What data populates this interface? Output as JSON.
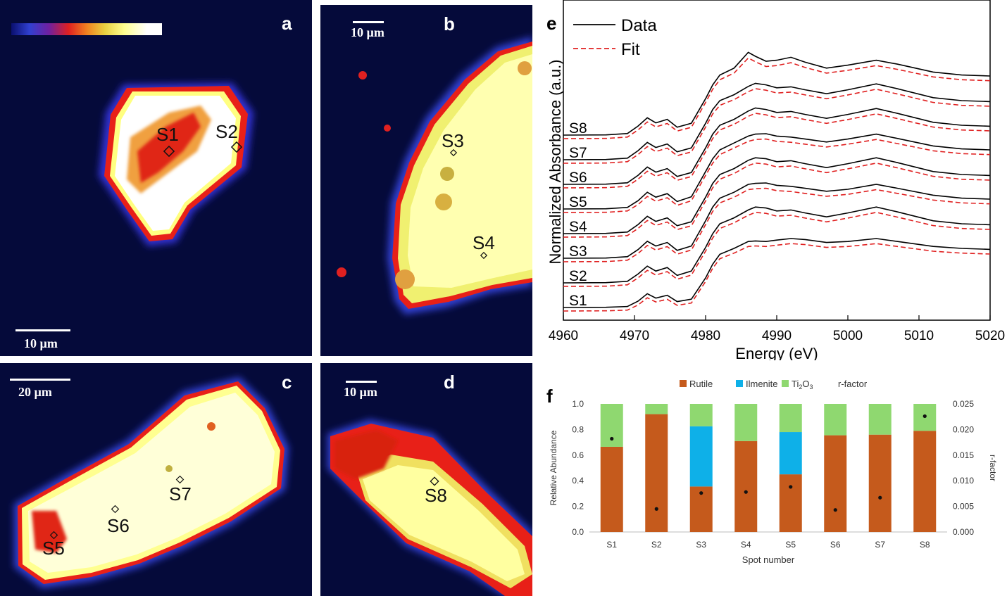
{
  "panels": {
    "a": {
      "label": "a",
      "scale": "10 µm",
      "spots": [
        "S1",
        "S2"
      ]
    },
    "b": {
      "label": "b",
      "scale": "10 µm",
      "spots": [
        "S3",
        "S4"
      ]
    },
    "c": {
      "label": "c",
      "scale": "20 µm",
      "spots": [
        "S5",
        "S6",
        "S7"
      ]
    },
    "d": {
      "label": "d",
      "scale": "10 µm",
      "spots": [
        "S8"
      ]
    }
  },
  "colormap": [
    "#0a0f6e",
    "#3040d0",
    "#7020a0",
    "#e02020",
    "#f08020",
    "#e8d040",
    "#ffff90",
    "#ffffff"
  ],
  "chart_data": [
    {
      "panel": "e",
      "type": "line",
      "xlabel": "Energy (eV)",
      "ylabel": "Normalized Absorbance (a.u.)",
      "xlim": [
        4960,
        5020
      ],
      "xticks": [
        4960,
        4970,
        4980,
        4990,
        5000,
        5010,
        5020
      ],
      "legend": {
        "placement": "top-left",
        "entries": [
          "Data",
          "Fit"
        ]
      },
      "colors": {
        "data": "#000000",
        "fit": "#e02020"
      },
      "series_labels": [
        "S1",
        "S2",
        "S3",
        "S4",
        "S5",
        "S6",
        "S7",
        "S8"
      ],
      "offsets": [
        0,
        1,
        2,
        3,
        4,
        5,
        6,
        7
      ],
      "energy": [
        4960,
        4966,
        4969,
        4970.5,
        4971.8,
        4973,
        4974.6,
        4976,
        4978,
        4980,
        4981,
        4982,
        4984,
        4986,
        4987,
        4988.5,
        4990,
        4992,
        4994,
        4997,
        5000,
        5004,
        5007,
        5012,
        5016,
        5020
      ],
      "data": [
        [
          0.0,
          0.01,
          0.05,
          0.32,
          0.7,
          0.48,
          0.62,
          0.3,
          0.42,
          1.5,
          2.2,
          2.7,
          3.0,
          3.35,
          3.38,
          3.35,
          3.42,
          3.5,
          3.45,
          3.3,
          3.35,
          3.5,
          3.35,
          3.1,
          3.0,
          2.95
        ],
        [
          0.0,
          0.01,
          0.08,
          0.45,
          0.85,
          0.6,
          0.78,
          0.38,
          0.6,
          1.8,
          2.5,
          3.0,
          3.3,
          3.7,
          3.85,
          3.8,
          3.65,
          3.7,
          3.55,
          3.35,
          3.55,
          3.85,
          3.6,
          3.15,
          3.0,
          2.95
        ],
        [
          0.0,
          0.01,
          0.08,
          0.44,
          0.86,
          0.62,
          0.8,
          0.4,
          0.62,
          1.9,
          2.6,
          3.05,
          3.35,
          3.75,
          3.8,
          3.82,
          3.7,
          3.65,
          3.55,
          3.4,
          3.5,
          3.75,
          3.55,
          3.2,
          3.05,
          3.0
        ],
        [
          0.0,
          0.01,
          0.08,
          0.46,
          0.88,
          0.62,
          0.8,
          0.4,
          0.6,
          1.85,
          2.55,
          3.0,
          3.3,
          3.72,
          3.85,
          3.8,
          3.65,
          3.7,
          3.55,
          3.35,
          3.55,
          3.85,
          3.6,
          3.15,
          3.0,
          2.95
        ],
        [
          0.0,
          0.01,
          0.08,
          0.42,
          0.85,
          0.6,
          0.78,
          0.38,
          0.62,
          1.9,
          2.55,
          3.0,
          3.35,
          3.7,
          3.8,
          3.82,
          3.7,
          3.65,
          3.55,
          3.4,
          3.55,
          3.8,
          3.58,
          3.2,
          3.05,
          3.0
        ],
        [
          0.0,
          0.01,
          0.08,
          0.46,
          0.88,
          0.62,
          0.8,
          0.4,
          0.6,
          1.85,
          2.55,
          3.0,
          3.3,
          3.72,
          3.88,
          3.8,
          3.65,
          3.7,
          3.55,
          3.35,
          3.55,
          3.85,
          3.6,
          3.15,
          3.0,
          2.95
        ],
        [
          0.0,
          0.01,
          0.08,
          0.46,
          0.88,
          0.62,
          0.8,
          0.4,
          0.6,
          1.85,
          2.55,
          3.0,
          3.3,
          3.72,
          3.88,
          3.8,
          3.65,
          3.7,
          3.55,
          3.35,
          3.55,
          3.85,
          3.6,
          3.15,
          3.0,
          2.95
        ],
        [
          0.0,
          0.01,
          0.08,
          0.46,
          0.88,
          0.62,
          0.8,
          0.4,
          0.6,
          1.85,
          2.55,
          3.05,
          3.4,
          4.2,
          4.0,
          3.75,
          3.8,
          3.95,
          3.7,
          3.4,
          3.55,
          3.8,
          3.6,
          3.2,
          3.05,
          3.0
        ]
      ]
    },
    {
      "panel": "f",
      "type": "bar",
      "xlabel": "Spot number",
      "ylabel": "Relative Abundance",
      "y2label": "r-factor",
      "ylim": [
        0,
        1.0
      ],
      "yticks": [
        "0.0",
        "0.2",
        "0.4",
        "0.6",
        "0.8",
        "1.0"
      ],
      "y2lim": [
        0,
        0.025
      ],
      "y2ticks": [
        "0.000",
        "0.005",
        "0.010",
        "0.015",
        "0.020",
        "0.025"
      ],
      "legend": {
        "placement": "top",
        "entries": [
          "Rutile",
          "Ilmenite",
          "Ti2O3",
          "r-factor"
        ]
      },
      "colors": {
        "Rutile": "#c55a1c",
        "Ilmenite": "#0eb0e8",
        "Ti2O3": "#8fd870"
      },
      "categories": [
        "S1",
        "S2",
        "S3",
        "S4",
        "S5",
        "S6",
        "S7",
        "S8"
      ],
      "series": [
        {
          "name": "Rutile",
          "values": [
            0.665,
            0.92,
            0.355,
            0.71,
            0.45,
            0.755,
            0.76,
            0.79
          ]
        },
        {
          "name": "Ilmenite",
          "values": [
            0,
            0,
            0.47,
            0,
            0.33,
            0,
            0,
            0
          ]
        },
        {
          "name": "Ti2O3",
          "values": [
            0.335,
            0.08,
            0.175,
            0.29,
            0.22,
            0.245,
            0.24,
            0.21
          ]
        }
      ],
      "rfactor": [
        0.0182,
        0.0045,
        0.0076,
        0.0078,
        0.0088,
        0.0043,
        0.0067,
        0.0226
      ]
    }
  ]
}
